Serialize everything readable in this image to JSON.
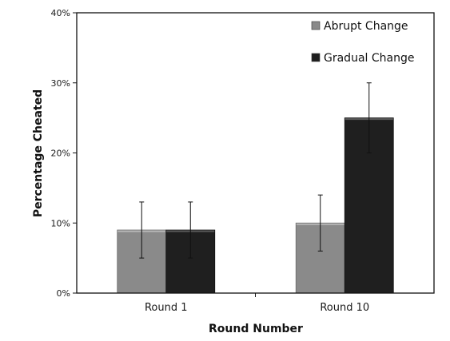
{
  "chart_data": {
    "type": "bar",
    "title": "",
    "xlabel": "Round Number",
    "ylabel": "Percentage Cheated",
    "categories": [
      "Round 1",
      "Round 10"
    ],
    "ylim": [
      0,
      40
    ],
    "yticks": [
      0,
      10,
      20,
      30,
      40
    ],
    "ytick_labels": [
      "0%",
      "10%",
      "20%",
      "30%",
      "40%"
    ],
    "legend_position": "top-right",
    "grid": false,
    "series": [
      {
        "name": "Abrupt Change",
        "color": "#8a8a8a",
        "values": [
          9,
          10
        ],
        "err_low": [
          5,
          6
        ],
        "err_high": [
          13,
          14
        ]
      },
      {
        "name": "Gradual Change",
        "color": "#1f1f1f",
        "values": [
          9,
          25
        ],
        "err_low": [
          5,
          20
        ],
        "err_high": [
          13,
          30
        ]
      }
    ]
  }
}
